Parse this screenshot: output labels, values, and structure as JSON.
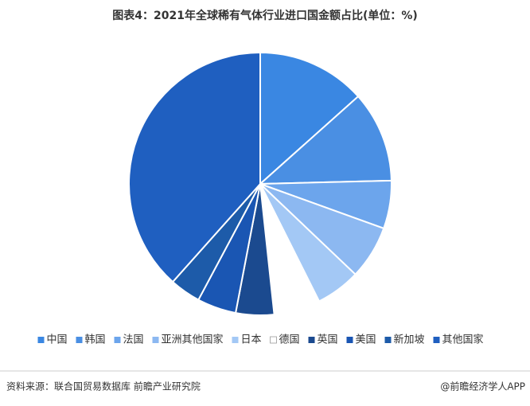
{
  "chart_data": {
    "type": "pie",
    "title": "图表4：2021年全球稀有气体行业进口国金额占比(单位：%)",
    "categories": [
      "中国",
      "韩国",
      "法国",
      "亚洲其他国家",
      "日本",
      "德国",
      "英国",
      "美国",
      "新加坡",
      "其他国家"
    ],
    "values": [
      13.4,
      11.2,
      5.9,
      6.6,
      5.5,
      5.7,
      4.7,
      4.8,
      3.8,
      38.4
    ],
    "colors": [
      "#3a87e2",
      "#4a8fe3",
      "#6ca5ec",
      "#8cb8f1",
      "#a3c8f5",
      "#ffffff",
      "#1b4a8f",
      "#1a56b3",
      "#1d5ba9",
      "#1f5fc0"
    ],
    "legend": "bottom"
  },
  "footer": {
    "source": "资料来源：联合国贸易数据库 前瞻产业研究院",
    "credit": "@前瞻经济学人APP"
  }
}
